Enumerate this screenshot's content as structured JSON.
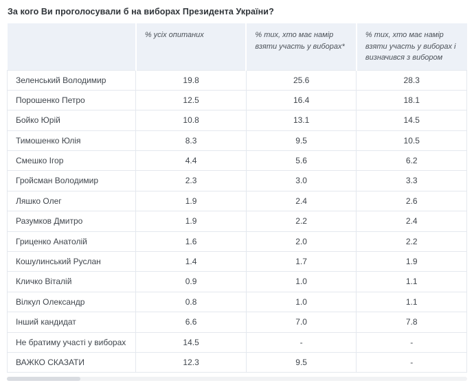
{
  "title": "За кого Ви проголосували б на виборах Президента України?",
  "chart_data": {
    "type": "table",
    "title": "За кого Ви проголосували б на виборах Президента України?",
    "columns": [
      "% усіх опитаних",
      "% тих, хто має намір взяти участь у виборах*",
      "% тих, хто має намір взяти участь у виборах і визначився з вибором"
    ],
    "missing_value_symbol": "-",
    "rows": [
      {
        "label": "Зеленський Володимир",
        "values": [
          19.8,
          25.6,
          28.3
        ]
      },
      {
        "label": "Порошенко Петро",
        "values": [
          12.5,
          16.4,
          18.1
        ]
      },
      {
        "label": "Бойко Юрій",
        "values": [
          10.8,
          13.1,
          14.5
        ]
      },
      {
        "label": "Тимошенко Юлія",
        "values": [
          8.3,
          9.5,
          10.5
        ]
      },
      {
        "label": "Смешко Ігор",
        "values": [
          4.4,
          5.6,
          6.2
        ]
      },
      {
        "label": "Гройсман Володимир",
        "values": [
          2.3,
          3.0,
          3.3
        ]
      },
      {
        "label": "Ляшко Олег",
        "values": [
          1.9,
          2.4,
          2.6
        ]
      },
      {
        "label": "Разумков Дмитро",
        "values": [
          1.9,
          2.2,
          2.4
        ]
      },
      {
        "label": "Гриценко Анатолій",
        "values": [
          1.6,
          2.0,
          2.2
        ]
      },
      {
        "label": "Кошулинський Руслан",
        "values": [
          1.4,
          1.7,
          1.9
        ]
      },
      {
        "label": "Кличко Віталій",
        "values": [
          0.9,
          1.0,
          1.1
        ]
      },
      {
        "label": "Вілкул Олександр",
        "values": [
          0.8,
          1.0,
          1.1
        ]
      },
      {
        "label": "Інший кандидат",
        "values": [
          6.6,
          7.0,
          7.8
        ]
      },
      {
        "label": "Не братиму участі у виборах",
        "values": [
          14.5,
          null,
          null
        ]
      },
      {
        "label": "ВАЖКО СКАЗАТИ",
        "values": [
          12.3,
          9.5,
          null
        ]
      }
    ],
    "colors": {
      "header_background": "#edf1f7",
      "row_background": "#ffffff",
      "border": "#e4e8ee",
      "title_text": "#2e3338",
      "body_text": "#3f454c"
    }
  }
}
